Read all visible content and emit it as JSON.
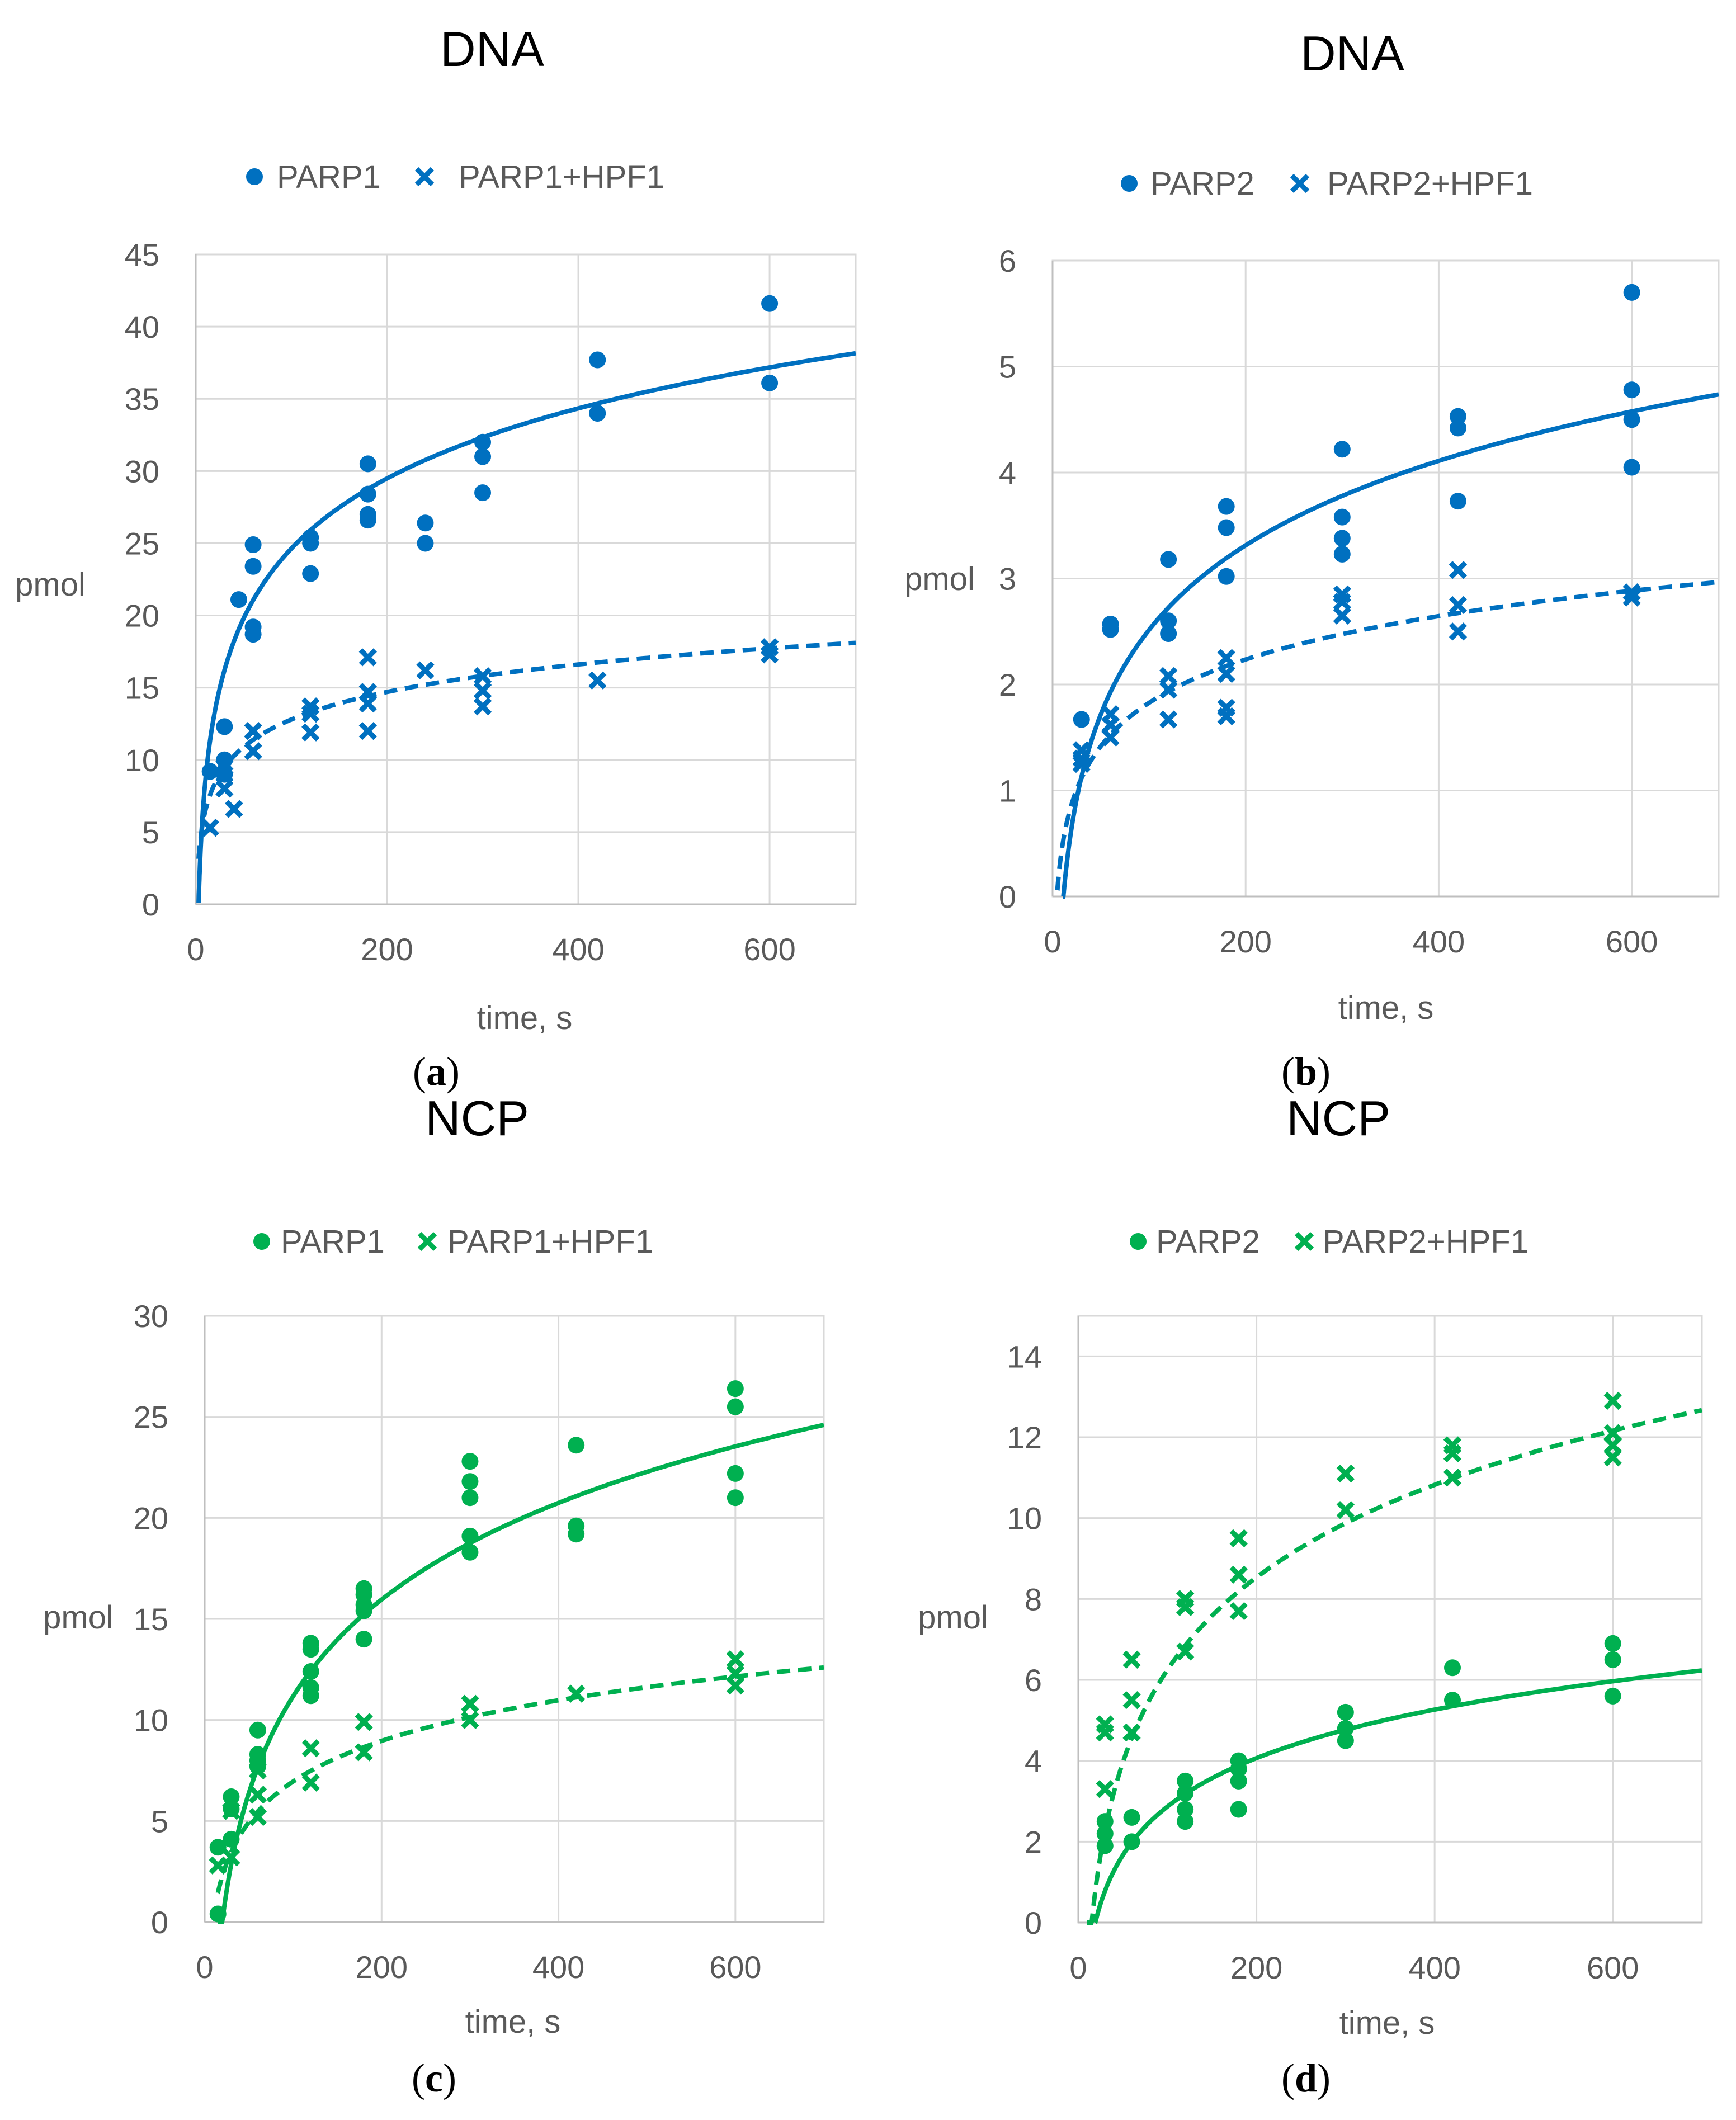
{
  "chart_data": [
    {
      "panel": "a",
      "type": "scatter",
      "title": "DNA",
      "xlabel": "time, s",
      "ylabel": "pmol",
      "xlim": [
        0,
        690
      ],
      "ylim": [
        0,
        45
      ],
      "xticks": [
        0,
        200,
        400,
        600
      ],
      "yticks": [
        0,
        5,
        10,
        15,
        20,
        25,
        30,
        35,
        40,
        45
      ],
      "color": "#0070c0",
      "legend_position": "top",
      "series": [
        {
          "name": "PARP1",
          "marker": "circle",
          "fit_style": "solid",
          "fit": {
            "a": 7.0,
            "b": -7.6,
            "x_start": 3
          },
          "points": [
            [
              15,
              9.2
            ],
            [
              30,
              9.0
            ],
            [
              30,
              10.0
            ],
            [
              30,
              12.3
            ],
            [
              45,
              21.1
            ],
            [
              60,
              18.7
            ],
            [
              60,
              19.2
            ],
            [
              60,
              23.4
            ],
            [
              60,
              24.9
            ],
            [
              120,
              22.9
            ],
            [
              120,
              25.0
            ],
            [
              120,
              25.4
            ],
            [
              180,
              26.6
            ],
            [
              180,
              27.0
            ],
            [
              180,
              28.4
            ],
            [
              180,
              30.5
            ],
            [
              240,
              25.0
            ],
            [
              240,
              26.4
            ],
            [
              300,
              28.5
            ],
            [
              300,
              31.0
            ],
            [
              300,
              32.0
            ],
            [
              420,
              34.0
            ],
            [
              420,
              37.7
            ],
            [
              600,
              36.1
            ],
            [
              600,
              41.6
            ]
          ]
        },
        {
          "name": "PARP1+HPF1",
          "marker": "x",
          "fit_style": "dashed",
          "fit": {
            "a": 2.75,
            "b": 0.13,
            "x_start": 3
          },
          "points": [
            [
              15,
              5.3
            ],
            [
              30,
              8.0
            ],
            [
              30,
              9.0
            ],
            [
              30,
              9.5
            ],
            [
              40,
              6.6
            ],
            [
              60,
              10.6
            ],
            [
              60,
              12.0
            ],
            [
              120,
              11.9
            ],
            [
              120,
              13.2
            ],
            [
              120,
              13.7
            ],
            [
              180,
              12.0
            ],
            [
              180,
              13.9
            ],
            [
              180,
              14.7
            ],
            [
              180,
              17.1
            ],
            [
              240,
              16.2
            ],
            [
              300,
              13.7
            ],
            [
              300,
              14.8
            ],
            [
              300,
              15.8
            ],
            [
              420,
              15.5
            ],
            [
              600,
              17.3
            ],
            [
              600,
              17.8
            ]
          ]
        }
      ]
    },
    {
      "panel": "b",
      "type": "scatter",
      "title": "DNA",
      "xlabel": "time, s",
      "ylabel": "pmol",
      "xlim": [
        0,
        690
      ],
      "ylim": [
        0,
        6
      ],
      "xticks": [
        0,
        200,
        400,
        600
      ],
      "yticks": [
        0,
        1,
        2,
        3,
        4,
        5,
        6
      ],
      "color": "#0070c0",
      "legend_position": "top",
      "series": [
        {
          "name": "PARP2",
          "marker": "circle",
          "fit_style": "solid",
          "fit": {
            "a": 1.15,
            "b": -2.78,
            "x_start": 11
          },
          "points": [
            [
              30,
              1.67
            ],
            [
              60,
              2.52
            ],
            [
              60,
              2.57
            ],
            [
              120,
              2.48
            ],
            [
              120,
              2.6
            ],
            [
              120,
              3.18
            ],
            [
              180,
              3.02
            ],
            [
              180,
              3.48
            ],
            [
              180,
              3.68
            ],
            [
              300,
              3.23
            ],
            [
              300,
              3.38
            ],
            [
              300,
              3.58
            ],
            [
              300,
              4.22
            ],
            [
              420,
              3.73
            ],
            [
              420,
              4.42
            ],
            [
              420,
              4.53
            ],
            [
              600,
              4.05
            ],
            [
              600,
              4.5
            ],
            [
              600,
              4.78
            ],
            [
              600,
              5.7
            ]
          ]
        },
        {
          "name": "PARP2+HPF1",
          "marker": "x",
          "fit_style": "dashed",
          "fit": {
            "a": 0.59,
            "b": -0.89,
            "x_start": 5
          },
          "points": [
            [
              30,
              1.25
            ],
            [
              30,
              1.3
            ],
            [
              30,
              1.38
            ],
            [
              60,
              1.5
            ],
            [
              60,
              1.62
            ],
            [
              60,
              1.72
            ],
            [
              120,
              1.67
            ],
            [
              120,
              1.95
            ],
            [
              120,
              2.08
            ],
            [
              180,
              1.7
            ],
            [
              180,
              1.78
            ],
            [
              180,
              2.1
            ],
            [
              180,
              2.25
            ],
            [
              300,
              2.65
            ],
            [
              300,
              2.78
            ],
            [
              300,
              2.85
            ],
            [
              420,
              2.5
            ],
            [
              420,
              2.75
            ],
            [
              420,
              3.08
            ],
            [
              600,
              2.82
            ],
            [
              600,
              2.87
            ]
          ]
        }
      ]
    },
    {
      "panel": "c",
      "type": "scatter",
      "title": "NCP",
      "xlabel": "time, s",
      "ylabel": "pmol",
      "xlim": [
        0,
        700
      ],
      "ylim": [
        0,
        30
      ],
      "xticks": [
        0,
        200,
        400,
        600
      ],
      "yticks": [
        0,
        5,
        10,
        15,
        20,
        25,
        30
      ],
      "color": "#00b050",
      "legend_position": "top",
      "series": [
        {
          "name": "PARP1",
          "marker": "circle",
          "fit_style": "solid",
          "fit": {
            "a": 6.9,
            "b": -20.6,
            "x_start": 15
          },
          "points": [
            [
              15,
              0.4
            ],
            [
              15,
              3.7
            ],
            [
              30,
              4.1
            ],
            [
              30,
              5.6
            ],
            [
              30,
              6.2
            ],
            [
              60,
              7.7
            ],
            [
              60,
              8.0
            ],
            [
              60,
              8.3
            ],
            [
              60,
              9.5
            ],
            [
              120,
              11.2
            ],
            [
              120,
              11.6
            ],
            [
              120,
              12.4
            ],
            [
              120,
              13.5
            ],
            [
              120,
              13.8
            ],
            [
              180,
              14.0
            ],
            [
              180,
              15.4
            ],
            [
              180,
              15.7
            ],
            [
              180,
              16.2
            ],
            [
              180,
              16.5
            ],
            [
              300,
              18.3
            ],
            [
              300,
              19.1
            ],
            [
              300,
              21.0
            ],
            [
              300,
              21.8
            ],
            [
              300,
              22.8
            ],
            [
              420,
              19.2
            ],
            [
              420,
              19.6
            ],
            [
              420,
              23.6
            ],
            [
              600,
              21.0
            ],
            [
              600,
              22.2
            ],
            [
              600,
              25.5
            ],
            [
              600,
              26.4
            ]
          ]
        },
        {
          "name": "PARP1+HPF1",
          "marker": "x",
          "fit_style": "dashed",
          "fit": {
            "a": 2.9,
            "b": -6.4,
            "x_start": 15
          },
          "points": [
            [
              15,
              2.8
            ],
            [
              30,
              3.2
            ],
            [
              30,
              5.5
            ],
            [
              60,
              5.2
            ],
            [
              60,
              6.3
            ],
            [
              60,
              7.5
            ],
            [
              120,
              6.9
            ],
            [
              120,
              8.6
            ],
            [
              180,
              8.4
            ],
            [
              180,
              9.9
            ],
            [
              300,
              10.0
            ],
            [
              300,
              10.8
            ],
            [
              420,
              11.3
            ],
            [
              600,
              11.7
            ],
            [
              600,
              12.3
            ],
            [
              600,
              13.0
            ]
          ]
        }
      ]
    },
    {
      "panel": "d",
      "type": "scatter",
      "title": "NCP",
      "xlabel": "time, s",
      "ylabel": "pmol",
      "xlim": [
        0,
        700
      ],
      "ylim": [
        0,
        15
      ],
      "xticks": [
        0,
        200,
        400,
        600
      ],
      "yticks": [
        0,
        2,
        4,
        6,
        8,
        10,
        12,
        14
      ],
      "color": "#00b050",
      "legend_position": "top",
      "series": [
        {
          "name": "PARP2",
          "marker": "circle",
          "fit_style": "solid",
          "fit": {
            "a": 1.73,
            "b": -5.1,
            "x_start": 19
          },
          "points": [
            [
              30,
              1.9
            ],
            [
              30,
              2.2
            ],
            [
              30,
              2.5
            ],
            [
              60,
              2.0
            ],
            [
              60,
              2.6
            ],
            [
              120,
              2.5
            ],
            [
              120,
              2.8
            ],
            [
              120,
              3.2
            ],
            [
              120,
              3.5
            ],
            [
              180,
              2.8
            ],
            [
              180,
              3.5
            ],
            [
              180,
              3.8
            ],
            [
              180,
              4.0
            ],
            [
              300,
              4.5
            ],
            [
              300,
              4.8
            ],
            [
              300,
              5.2
            ],
            [
              420,
              5.5
            ],
            [
              420,
              6.3
            ],
            [
              600,
              5.6
            ],
            [
              600,
              6.5
            ],
            [
              600,
              6.9
            ]
          ]
        },
        {
          "name": "PARP2+HPF1",
          "marker": "x",
          "fit_style": "dashed",
          "fit": {
            "a": 3.3,
            "b": -8.95,
            "x_start": 10
          },
          "points": [
            [
              30,
              3.3
            ],
            [
              30,
              4.7
            ],
            [
              30,
              4.9
            ],
            [
              60,
              4.7
            ],
            [
              60,
              5.5
            ],
            [
              60,
              6.5
            ],
            [
              120,
              6.7
            ],
            [
              120,
              7.8
            ],
            [
              120,
              8.0
            ],
            [
              180,
              7.7
            ],
            [
              180,
              8.6
            ],
            [
              180,
              9.5
            ],
            [
              300,
              10.2
            ],
            [
              300,
              11.1
            ],
            [
              420,
              11.0
            ],
            [
              420,
              11.6
            ],
            [
              420,
              11.8
            ],
            [
              600,
              11.5
            ],
            [
              600,
              11.8
            ],
            [
              600,
              12.1
            ],
            [
              600,
              12.9
            ]
          ]
        }
      ]
    }
  ],
  "panels": [
    {
      "label_open": "(",
      "label": "a",
      "label_close": ")"
    },
    {
      "label_open": "(",
      "label": "b",
      "label_close": ")"
    },
    {
      "label_open": "(",
      "label": "c",
      "label_close": ")"
    },
    {
      "label_open": "(",
      "label": "d",
      "label_close": ")"
    }
  ]
}
